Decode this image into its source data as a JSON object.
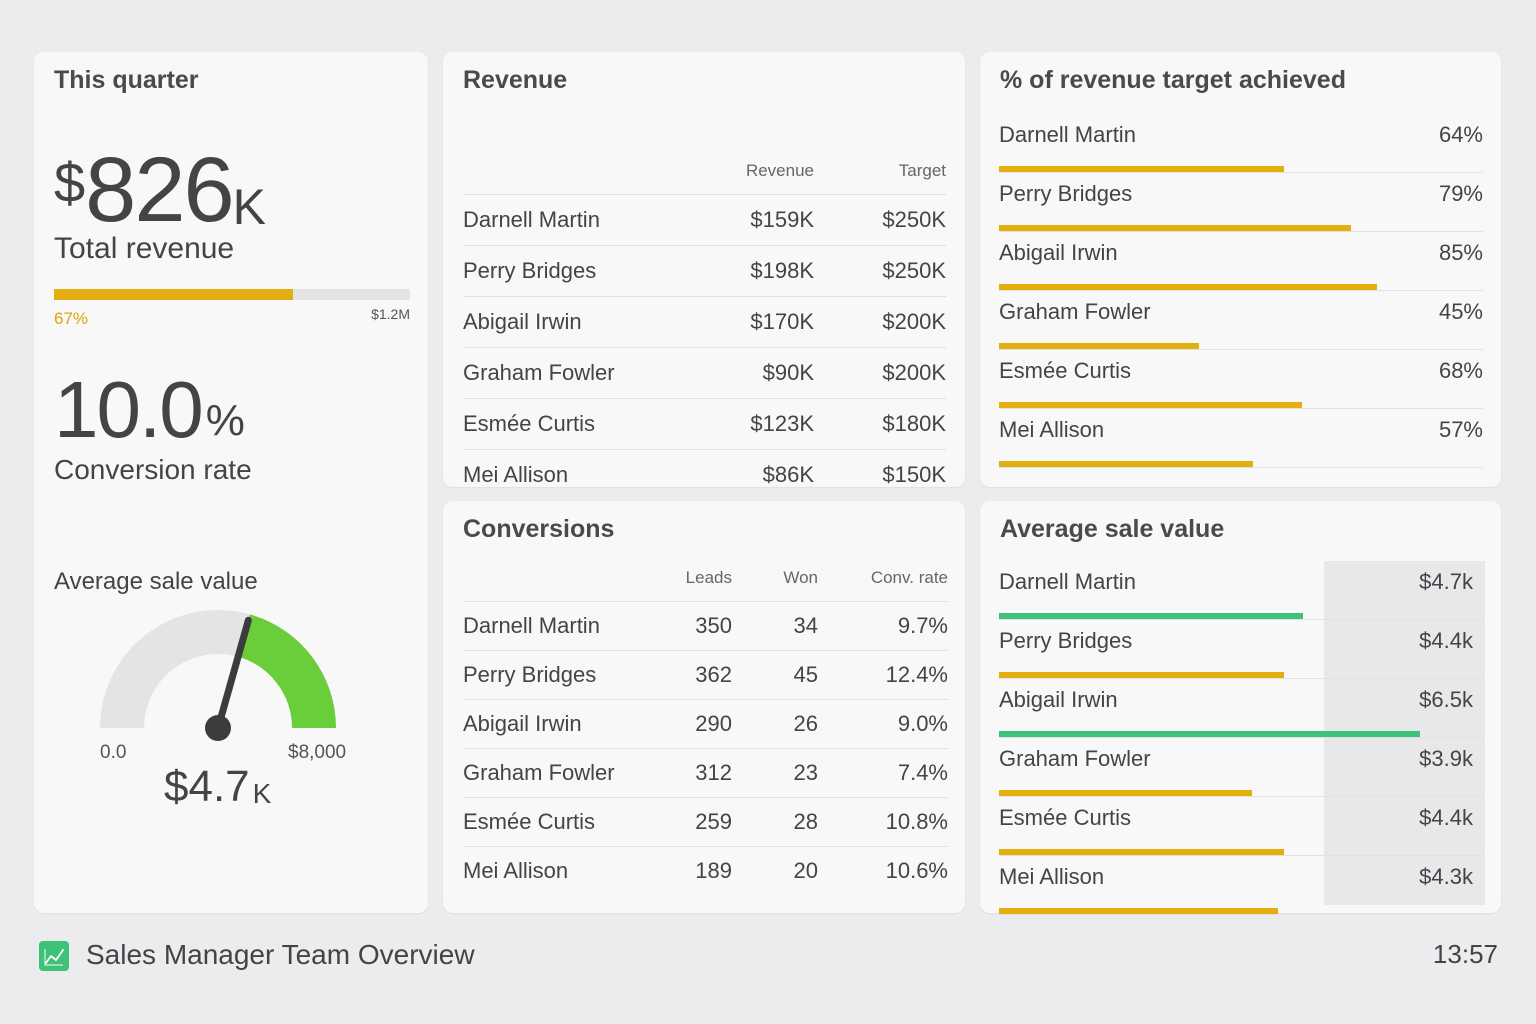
{
  "quarter": {
    "title": "This quarter",
    "total_revenue": {
      "currency": "$",
      "value": "826",
      "unit": "K",
      "label": "Total revenue",
      "progress_label": "67%",
      "progress_fraction": 0.67,
      "max_label": "$1.2M",
      "bar_color": "#e2ae10"
    },
    "conversion": {
      "value": "10.0",
      "unit": "%",
      "label": "Conversion rate"
    },
    "avg_sale": {
      "label": "Average sale value",
      "min_label": "0.0",
      "max_label": "$8,000",
      "currency": "$",
      "value": "4.7",
      "unit": "K",
      "min": 0,
      "max": 8000,
      "current": 4700,
      "fill_color": "#6acd3a",
      "track_color": "#e4e4e6"
    }
  },
  "revenue": {
    "title": "Revenue",
    "headers": [
      "",
      "Revenue",
      "Target"
    ],
    "rows": [
      {
        "name": "Darnell Martin",
        "revenue": "$159K",
        "target": "$250K"
      },
      {
        "name": "Perry Bridges",
        "revenue": "$198K",
        "target": "$250K"
      },
      {
        "name": "Abigail Irwin",
        "revenue": "$170K",
        "target": "$200K"
      },
      {
        "name": "Graham Fowler",
        "revenue": "$90K",
        "target": "$200K"
      },
      {
        "name": "Esmée Curtis",
        "revenue": "$123K",
        "target": "$180K"
      },
      {
        "name": "Mei Allison",
        "revenue": "$86K",
        "target": "$150K"
      }
    ]
  },
  "target_achieved": {
    "title": "% of revenue target achieved",
    "bar_color": "#e2ae10",
    "rows": [
      {
        "name": "Darnell Martin",
        "value": "64%",
        "fraction": 0.64
      },
      {
        "name": "Perry Bridges",
        "value": "79%",
        "fraction": 0.79
      },
      {
        "name": "Abigail Irwin",
        "value": "85%",
        "fraction": 0.85
      },
      {
        "name": "Graham Fowler",
        "value": "45%",
        "fraction": 0.45
      },
      {
        "name": "Esmée Curtis",
        "value": "68%",
        "fraction": 0.68
      },
      {
        "name": "Mei Allison",
        "value": "57%",
        "fraction": 0.57
      }
    ]
  },
  "conversions": {
    "title": "Conversions",
    "headers": [
      "",
      "Leads",
      "Won",
      "Conv. rate"
    ],
    "rows": [
      {
        "name": "Darnell Martin",
        "leads": "350",
        "won": "34",
        "rate": "9.7%"
      },
      {
        "name": "Perry Bridges",
        "leads": "362",
        "won": "45",
        "rate": "12.4%"
      },
      {
        "name": "Abigail Irwin",
        "leads": "290",
        "won": "26",
        "rate": "9.0%"
      },
      {
        "name": "Graham Fowler",
        "leads": "312",
        "won": "23",
        "rate": "7.4%"
      },
      {
        "name": "Esmée Curtis",
        "leads": "259",
        "won": "28",
        "rate": "10.8%"
      },
      {
        "name": "Mei Allison",
        "leads": "189",
        "won": "20",
        "rate": "10.6%"
      }
    ]
  },
  "avg_sale_value": {
    "title": "Average sale value",
    "scale_max": 6.5,
    "rows": [
      {
        "name": "Darnell Martin",
        "value": "$4.7k",
        "amount": 4.7,
        "color": "#3ec27a"
      },
      {
        "name": "Perry Bridges",
        "value": "$4.4k",
        "amount": 4.4,
        "color": "#e2ae10"
      },
      {
        "name": "Abigail Irwin",
        "value": "$6.5k",
        "amount": 6.5,
        "color": "#3ec27a"
      },
      {
        "name": "Graham Fowler",
        "value": "$3.9k",
        "amount": 3.9,
        "color": "#e2ae10"
      },
      {
        "name": "Esmée Curtis",
        "value": "$4.4k",
        "amount": 4.4,
        "color": "#e2ae10"
      },
      {
        "name": "Mei Allison",
        "value": "$4.3k",
        "amount": 4.3,
        "color": "#e2ae10"
      }
    ]
  },
  "footer": {
    "title": "Sales Manager Team Overview",
    "time": "13:57",
    "icon": "chart-line-icon"
  }
}
